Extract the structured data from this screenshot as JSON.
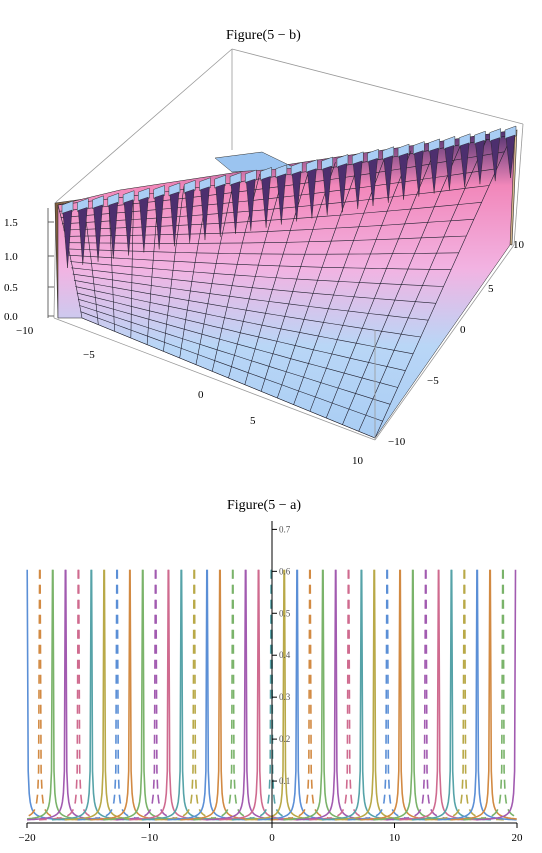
{
  "chart_data": [
    {
      "id": "figure-5b",
      "type": "surface3d",
      "title": "Figure(5 − b)",
      "x_ticks": [
        "−10",
        "−5",
        "0",
        "5",
        "10"
      ],
      "y_ticks": [
        "10",
        "5",
        "0",
        "−5",
        "−10"
      ],
      "z_ticks": [
        "0.0",
        "0.5",
        "1.0",
        "1.5"
      ],
      "x_range": [
        -10,
        10
      ],
      "y_range": [
        -10,
        10
      ],
      "z_range": [
        0,
        1.7
      ],
      "colors": {
        "low": "#a9cdf4",
        "high": "#f287ba",
        "peak": "#4d2f6e",
        "side": "#b89a6e"
      }
    },
    {
      "id": "figure-5a",
      "type": "line",
      "title": "Figure(5 − a)",
      "x_ticks": [
        "−20",
        "−10",
        "0",
        "10",
        "20"
      ],
      "x_tick_values": [
        -20,
        -10,
        0,
        10,
        20
      ],
      "y_ticks": [
        "0.1",
        "0.2",
        "0.3",
        "0.4",
        "0.5",
        "0.6",
        "0.7"
      ],
      "y_tick_values": [
        0.1,
        0.2,
        0.3,
        0.4,
        0.5,
        0.6,
        0.7
      ],
      "xlim": [
        -20,
        20
      ],
      "ylim": [
        0,
        0.72
      ],
      "grid": false,
      "line_colors": [
        "#5b8fd6",
        "#d28a43",
        "#7ab36a",
        "#a25bb0",
        "#cf6b8f",
        "#56a3a8",
        "#b9a948"
      ]
    }
  ]
}
